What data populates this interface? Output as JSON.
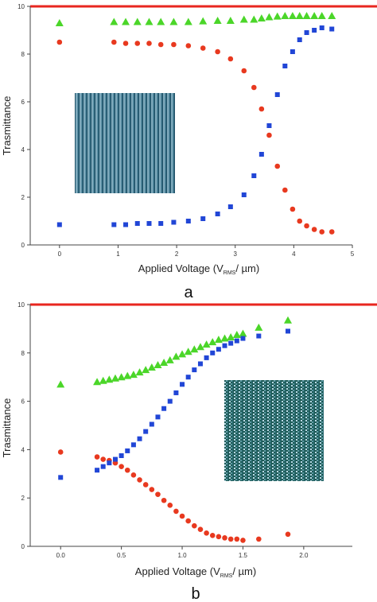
{
  "figure": {
    "colors": {
      "top_line": "#e8261f",
      "series_1": "#4bd629",
      "series_2": "#e8391f",
      "series_3": "#2146d6",
      "axis": "#444444",
      "texture_a": "#4f7f97",
      "texture_b": "#3f7585"
    }
  },
  "chart_data": [
    {
      "type": "scatter",
      "panel_label": "a",
      "xlabel": "Applied Voltage (V",
      "xlabel_sub": "RMS",
      "xlabel_tail": "/ µm)",
      "ylabel": "Trasmittance",
      "xlim": [
        -0.5,
        5
      ],
      "ylim": [
        0,
        10
      ],
      "xticks": [
        "0",
        "1",
        "2",
        "3",
        "4",
        "5"
      ],
      "xtick_values": [
        0,
        1,
        2,
        3,
        4,
        5
      ],
      "yticks": [
        "0",
        "2",
        "4",
        "6",
        "8",
        "10"
      ],
      "ytick_values": [
        0,
        2,
        4,
        6,
        8,
        10
      ],
      "reference_line_y": 10,
      "inset": {
        "position": "left-middle",
        "pattern": "vertical stripes"
      },
      "series": [
        {
          "marker": "triangle",
          "color_key": "series_1",
          "x": [
            0,
            0.93,
            1.13,
            1.33,
            1.53,
            1.73,
            1.95,
            2.2,
            2.45,
            2.7,
            2.92,
            3.15,
            3.32,
            3.45,
            3.58,
            3.72,
            3.85,
            3.98,
            4.1,
            4.22,
            4.35,
            4.48,
            4.65
          ],
          "y": [
            9.3,
            9.35,
            9.35,
            9.35,
            9.35,
            9.35,
            9.35,
            9.35,
            9.38,
            9.4,
            9.4,
            9.45,
            9.45,
            9.5,
            9.55,
            9.58,
            9.6,
            9.6,
            9.6,
            9.6,
            9.6,
            9.6,
            9.6
          ]
        },
        {
          "marker": "circle",
          "color_key": "series_2",
          "x": [
            0,
            0.93,
            1.13,
            1.33,
            1.53,
            1.73,
            1.95,
            2.2,
            2.45,
            2.7,
            2.92,
            3.15,
            3.32,
            3.45,
            3.58,
            3.72,
            3.85,
            3.98,
            4.1,
            4.22,
            4.35,
            4.48,
            4.65
          ],
          "y": [
            8.5,
            8.5,
            8.45,
            8.45,
            8.45,
            8.4,
            8.4,
            8.35,
            8.25,
            8.1,
            7.8,
            7.3,
            6.6,
            5.7,
            4.6,
            3.3,
            2.3,
            1.5,
            1.0,
            0.8,
            0.65,
            0.55,
            0.55
          ]
        },
        {
          "marker": "square",
          "color_key": "series_3",
          "x": [
            0,
            0.93,
            1.13,
            1.33,
            1.53,
            1.73,
            1.95,
            2.2,
            2.45,
            2.7,
            2.92,
            3.15,
            3.32,
            3.45,
            3.58,
            3.72,
            3.85,
            3.98,
            4.1,
            4.22,
            4.35,
            4.48,
            4.65
          ],
          "y": [
            0.85,
            0.85,
            0.85,
            0.9,
            0.9,
            0.9,
            0.95,
            1.0,
            1.1,
            1.3,
            1.6,
            2.1,
            2.9,
            3.8,
            5.0,
            6.3,
            7.5,
            8.1,
            8.6,
            8.9,
            9.0,
            9.1,
            9.05
          ]
        }
      ]
    },
    {
      "type": "scatter",
      "panel_label": "b",
      "xlabel": "Applied Voltage (V",
      "xlabel_sub": "RMS",
      "xlabel_tail": "/ µm)",
      "ylabel": "Trasmittance",
      "xlim": [
        -0.25,
        2.4
      ],
      "ylim": [
        0,
        10
      ],
      "xticks": [
        "0.0",
        "0.5",
        "1.0",
        "1.5",
        "2.0"
      ],
      "xtick_values": [
        0,
        0.5,
        1.0,
        1.5,
        2.0
      ],
      "yticks": [
        "0",
        "2",
        "4",
        "6",
        "8",
        "10"
      ],
      "ytick_values": [
        0,
        2,
        4,
        6,
        8,
        10
      ],
      "reference_line_y": 10,
      "inset": {
        "position": "right-middle",
        "pattern": "vertical stripes"
      },
      "series": [
        {
          "marker": "triangle",
          "color_key": "series_1",
          "x": [
            0,
            0.3,
            0.35,
            0.4,
            0.45,
            0.5,
            0.55,
            0.6,
            0.65,
            0.7,
            0.75,
            0.8,
            0.85,
            0.9,
            0.95,
            1.0,
            1.05,
            1.1,
            1.15,
            1.2,
            1.25,
            1.3,
            1.35,
            1.4,
            1.45,
            1.5,
            1.63,
            1.87
          ],
          "y": [
            6.7,
            6.8,
            6.85,
            6.9,
            6.95,
            7.0,
            7.05,
            7.1,
            7.2,
            7.3,
            7.4,
            7.5,
            7.6,
            7.7,
            7.85,
            7.95,
            8.05,
            8.15,
            8.25,
            8.35,
            8.45,
            8.55,
            8.6,
            8.65,
            8.75,
            8.8,
            9.05,
            9.35
          ]
        },
        {
          "marker": "circle",
          "color_key": "series_2",
          "x": [
            0,
            0.3,
            0.35,
            0.4,
            0.45,
            0.5,
            0.55,
            0.6,
            0.65,
            0.7,
            0.75,
            0.8,
            0.85,
            0.9,
            0.95,
            1.0,
            1.05,
            1.1,
            1.15,
            1.2,
            1.25,
            1.3,
            1.35,
            1.4,
            1.45,
            1.5,
            1.63,
            1.87
          ],
          "y": [
            3.9,
            3.7,
            3.6,
            3.55,
            3.45,
            3.3,
            3.15,
            2.95,
            2.75,
            2.55,
            2.35,
            2.15,
            1.9,
            1.7,
            1.45,
            1.25,
            1.05,
            0.85,
            0.7,
            0.55,
            0.45,
            0.4,
            0.35,
            0.3,
            0.3,
            0.25,
            0.3,
            0.5
          ]
        },
        {
          "marker": "square",
          "color_key": "series_3",
          "x": [
            0,
            0.3,
            0.35,
            0.4,
            0.45,
            0.5,
            0.55,
            0.6,
            0.65,
            0.7,
            0.75,
            0.8,
            0.85,
            0.9,
            0.95,
            1.0,
            1.05,
            1.1,
            1.15,
            1.2,
            1.25,
            1.3,
            1.35,
            1.4,
            1.45,
            1.5,
            1.63,
            1.87
          ],
          "y": [
            2.85,
            3.15,
            3.3,
            3.45,
            3.6,
            3.75,
            3.95,
            4.2,
            4.45,
            4.75,
            5.05,
            5.35,
            5.7,
            6.0,
            6.35,
            6.7,
            7.0,
            7.3,
            7.55,
            7.8,
            8.0,
            8.15,
            8.3,
            8.4,
            8.5,
            8.6,
            8.7,
            8.9
          ]
        }
      ]
    }
  ]
}
